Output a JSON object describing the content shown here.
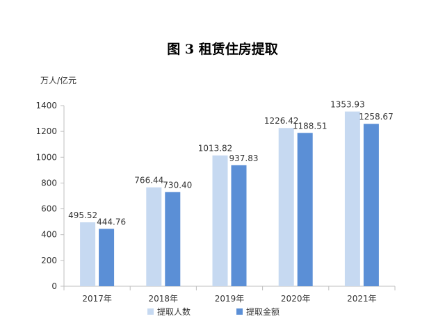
{
  "chart_data": {
    "type": "bar",
    "title": "图 3    租赁住房提取",
    "unit_label": "万人/亿元",
    "categories": [
      "2017年",
      "2018年",
      "2019年",
      "2020年",
      "2021年"
    ],
    "series": [
      {
        "name": "提取人数",
        "color": "#c6d9f1",
        "values": [
          495.52,
          766.44,
          1013.82,
          1226.42,
          1353.93
        ],
        "labels": [
          "495.52",
          "766.44",
          "1013.82",
          "1226.42",
          "1353.93"
        ]
      },
      {
        "name": "提取金额",
        "color": "#5b8fd6",
        "values": [
          444.76,
          730.4,
          937.83,
          1188.51,
          1258.67
        ],
        "labels": [
          "444.76",
          "730.40",
          "937.83",
          "1188.51",
          "1258.67"
        ]
      }
    ],
    "ylim": [
      0,
      1400
    ],
    "yticks": [
      0,
      200,
      400,
      600,
      800,
      1000,
      1200,
      1400
    ],
    "grid": false,
    "legend_position": "bottom"
  }
}
